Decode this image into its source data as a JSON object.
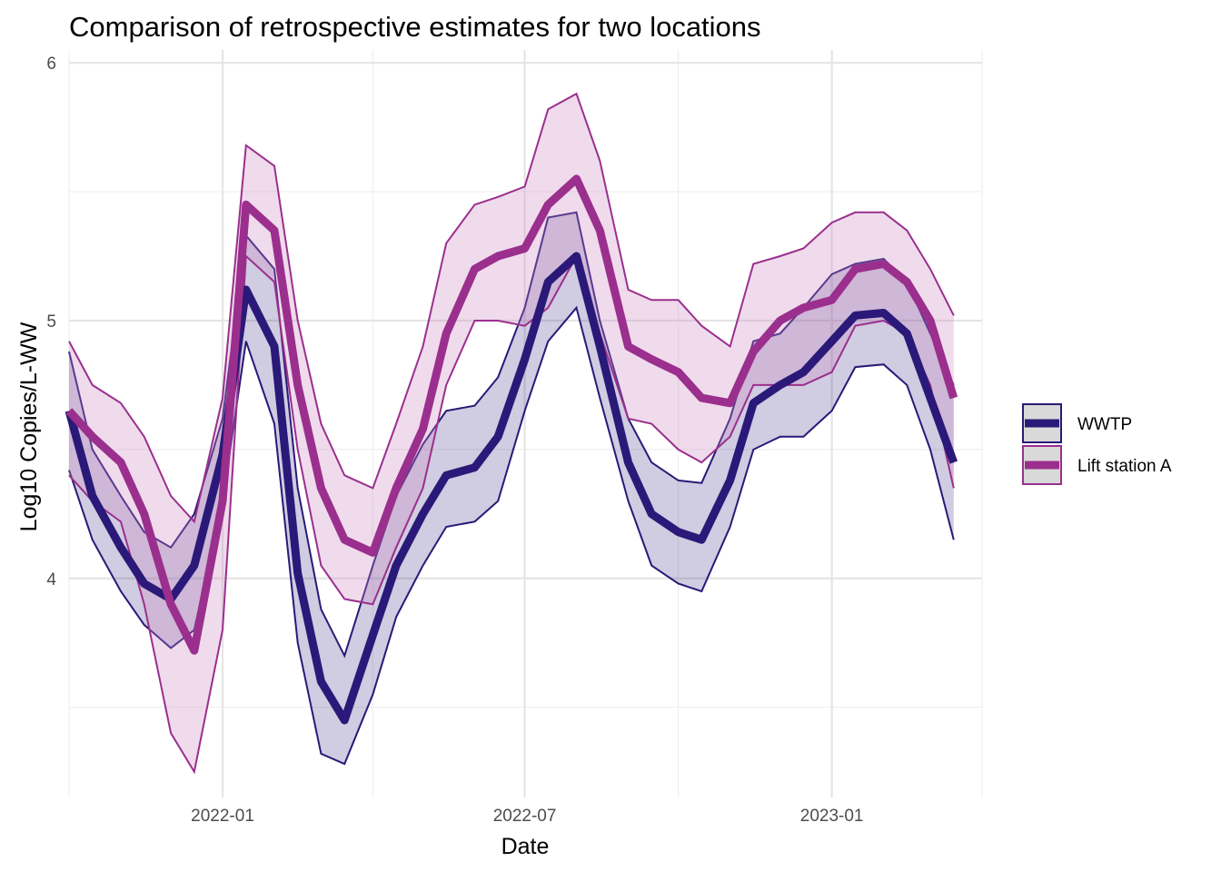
{
  "chart_data": {
    "type": "area",
    "title": "Comparison of retrospective estimates for two locations",
    "xlabel": "Date",
    "ylabel": "Log10 Copies/L-WW",
    "x_ticks": [
      "2022-01",
      "2022-07",
      "2023-01"
    ],
    "y_ticks": [
      "4",
      "5",
      "6"
    ],
    "xlim": [
      "2021-10-01",
      "2023-04-01"
    ],
    "ylim": [
      3.15,
      6.05
    ],
    "grid": true,
    "legend_position": "right",
    "dates": [
      "2021-10-01",
      "2021-10-15",
      "2021-11-01",
      "2021-11-15",
      "2021-12-01",
      "2021-12-15",
      "2022-01-01",
      "2022-01-15",
      "2022-02-01",
      "2022-02-15",
      "2022-03-01",
      "2022-03-15",
      "2022-04-01",
      "2022-04-15",
      "2022-05-01",
      "2022-05-15",
      "2022-06-01",
      "2022-06-15",
      "2022-07-01",
      "2022-07-15",
      "2022-08-01",
      "2022-08-15",
      "2022-09-01",
      "2022-09-15",
      "2022-10-01",
      "2022-10-15",
      "2022-11-01",
      "2022-11-15",
      "2022-12-01",
      "2022-12-15",
      "2023-01-01",
      "2023-01-15",
      "2023-02-01",
      "2023-02-15",
      "2023-03-01",
      "2023-03-15"
    ],
    "series": [
      {
        "name": "WWTP",
        "color": "#2a1978",
        "fill": "#2a1978",
        "median": [
          4.65,
          4.32,
          4.12,
          3.98,
          3.92,
          4.05,
          4.48,
          5.12,
          4.9,
          4.02,
          3.6,
          3.45,
          3.78,
          4.05,
          4.25,
          4.4,
          4.43,
          4.55,
          4.85,
          5.15,
          5.25,
          4.9,
          4.45,
          4.25,
          4.18,
          4.15,
          4.38,
          4.68,
          4.75,
          4.8,
          4.92,
          5.02,
          5.03,
          4.95,
          4.7,
          4.45
        ],
        "upper": [
          4.88,
          4.5,
          4.32,
          4.18,
          4.12,
          4.25,
          4.62,
          5.33,
          5.2,
          4.35,
          3.88,
          3.7,
          4.05,
          4.32,
          4.52,
          4.65,
          4.67,
          4.78,
          5.05,
          5.4,
          5.42,
          5.0,
          4.62,
          4.45,
          4.38,
          4.37,
          4.62,
          4.92,
          4.95,
          5.05,
          5.18,
          5.22,
          5.24,
          5.15,
          4.95,
          4.75
        ],
        "lower": [
          4.42,
          4.15,
          3.95,
          3.82,
          3.73,
          3.8,
          4.3,
          4.92,
          4.6,
          3.75,
          3.32,
          3.28,
          3.55,
          3.85,
          4.05,
          4.2,
          4.22,
          4.3,
          4.65,
          4.92,
          5.05,
          4.7,
          4.3,
          4.05,
          3.98,
          3.95,
          4.2,
          4.5,
          4.55,
          4.55,
          4.65,
          4.82,
          4.83,
          4.75,
          4.5,
          4.15
        ]
      },
      {
        "name": "Lift station A",
        "color": "#9b2f8d",
        "fill": "#c987c0",
        "median": [
          4.65,
          4.55,
          4.45,
          4.25,
          3.9,
          3.72,
          4.3,
          5.45,
          5.35,
          4.75,
          4.35,
          4.15,
          4.1,
          4.35,
          4.58,
          4.95,
          5.2,
          5.25,
          5.28,
          5.45,
          5.55,
          5.35,
          4.9,
          4.85,
          4.8,
          4.7,
          4.68,
          4.88,
          5.0,
          5.05,
          5.08,
          5.2,
          5.22,
          5.15,
          5.0,
          4.7
        ],
        "upper": [
          4.92,
          4.75,
          4.68,
          4.55,
          4.32,
          4.22,
          4.7,
          5.68,
          5.6,
          5.0,
          4.6,
          4.4,
          4.35,
          4.6,
          4.9,
          5.3,
          5.45,
          5.48,
          5.52,
          5.82,
          5.88,
          5.62,
          5.12,
          5.08,
          5.08,
          4.98,
          4.9,
          5.22,
          5.25,
          5.28,
          5.38,
          5.42,
          5.42,
          5.35,
          5.2,
          5.02
        ],
        "lower": [
          4.4,
          4.3,
          4.22,
          3.9,
          3.4,
          3.25,
          3.8,
          5.25,
          5.15,
          4.5,
          4.05,
          3.92,
          3.9,
          4.12,
          4.35,
          4.75,
          5.0,
          5.0,
          4.98,
          5.05,
          5.25,
          4.95,
          4.62,
          4.6,
          4.5,
          4.45,
          4.55,
          4.75,
          4.75,
          4.75,
          4.8,
          4.98,
          5.0,
          4.95,
          4.75,
          4.35
        ]
      }
    ]
  }
}
